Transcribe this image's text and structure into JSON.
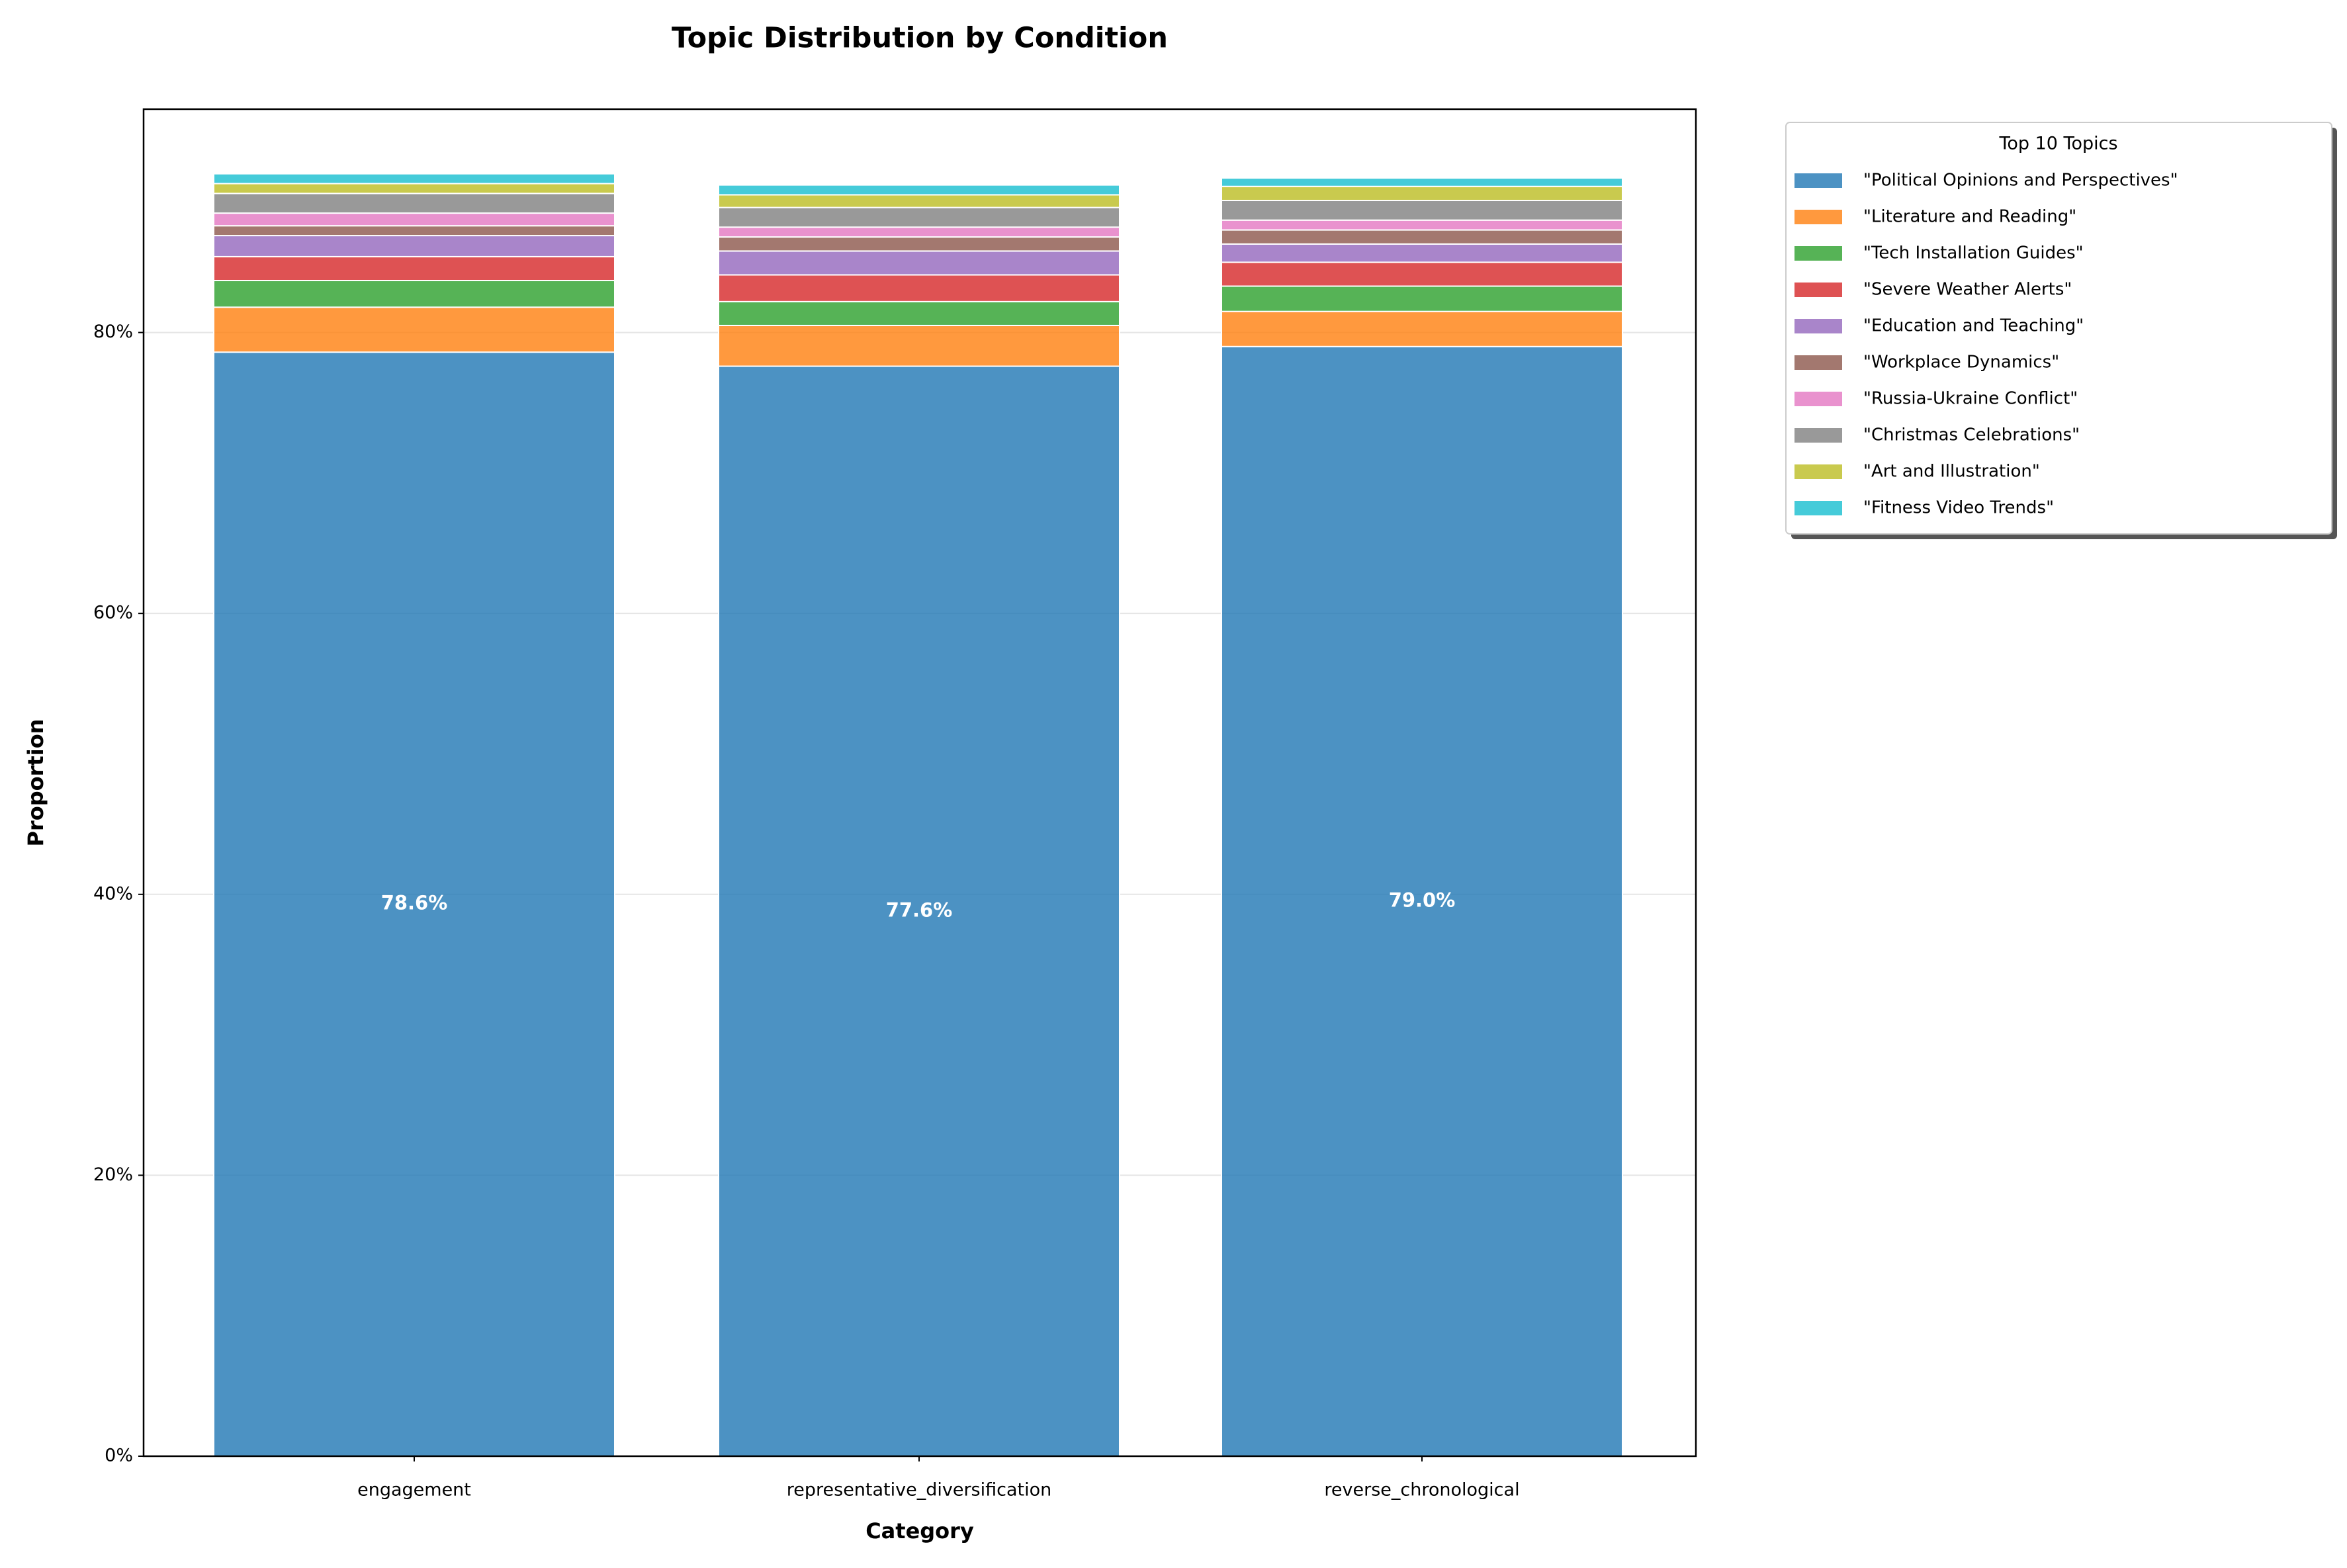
{
  "chart_data": {
    "type": "stacked_bar",
    "title": "Topic Distribution by Condition",
    "x_label": "Category",
    "y_label": "Proportion",
    "legend_title": "Top 10 Topics",
    "legend_position": "outside upper right",
    "grid": true,
    "categories": [
      "engagement",
      "representative_diversification",
      "reverse_chronological"
    ],
    "ylim": [
      0,
      95.9
    ],
    "yticks": [
      {
        "value": 0,
        "label": "0%"
      },
      {
        "value": 20,
        "label": "20%"
      },
      {
        "value": 40,
        "label": "40%"
      },
      {
        "value": 60,
        "label": "60%"
      },
      {
        "value": 80,
        "label": "80%"
      }
    ],
    "series": [
      {
        "name": "\"Political Opinions and Perspectives\"",
        "color": "#1f77b4",
        "values": [
          78.6,
          77.6,
          79.0
        ],
        "value_labels": [
          "78.6%",
          "77.6%",
          "79.0%"
        ]
      },
      {
        "name": "\"Literature and Reading\"",
        "color": "#ff7f0e",
        "values": [
          3.2,
          2.9,
          2.5
        ]
      },
      {
        "name": "\"Tech Installation Guides\"",
        "color": "#2ca02c",
        "values": [
          1.9,
          1.7,
          1.8
        ]
      },
      {
        "name": "\"Severe Weather Alerts\"",
        "color": "#d62728",
        "values": [
          1.7,
          1.9,
          1.7
        ]
      },
      {
        "name": "\"Education and Teaching\"",
        "color": "#9467bd",
        "values": [
          1.5,
          1.7,
          1.3
        ]
      },
      {
        "name": "\"Workplace Dynamics\"",
        "color": "#8c564b",
        "values": [
          0.7,
          1.0,
          1.0
        ]
      },
      {
        "name": "\"Russia-Ukraine Conflict\"",
        "color": "#e377c2",
        "values": [
          0.9,
          0.7,
          0.7
        ]
      },
      {
        "name": "\"Christmas Celebrations\"",
        "color": "#7f7f7f",
        "values": [
          1.4,
          1.4,
          1.4
        ]
      },
      {
        "name": "\"Art and Illustration\"",
        "color": "#bcbd22",
        "values": [
          0.7,
          0.9,
          1.0
        ]
      },
      {
        "name": "\"Fitness Video Trends\"",
        "color": "#17becf",
        "values": [
          0.7,
          0.7,
          0.6
        ]
      }
    ]
  }
}
